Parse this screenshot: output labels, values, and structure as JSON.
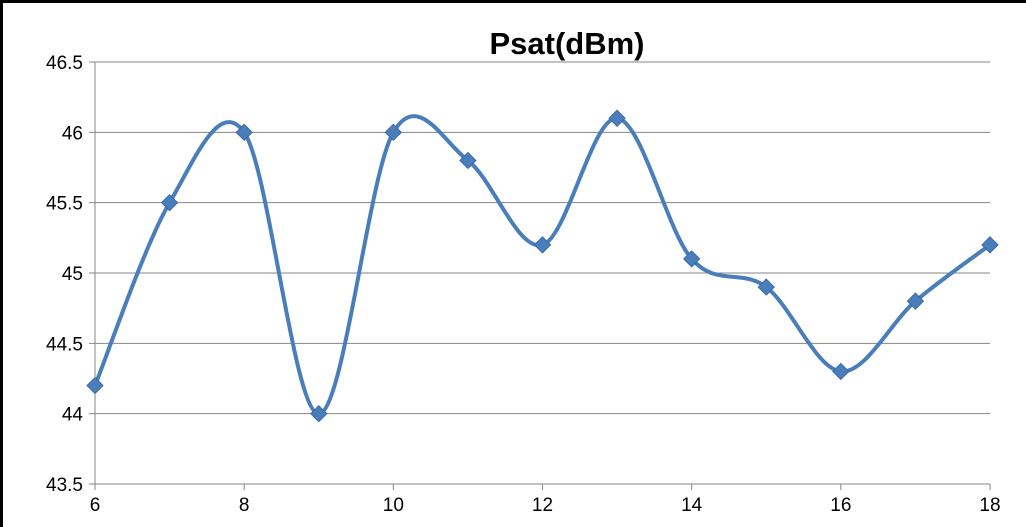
{
  "chart_data": {
    "type": "line",
    "title": "Psat(dBm)",
    "xlabel": "",
    "ylabel": "",
    "x": [
      6,
      7,
      8,
      9,
      10,
      11,
      12,
      13,
      14,
      15,
      16,
      17,
      18
    ],
    "series": [
      {
        "values": [
          44.2,
          45.5,
          46.0,
          44.0,
          46.0,
          45.8,
          45.2,
          46.1,
          45.1,
          44.9,
          44.3,
          44.8,
          45.2
        ]
      }
    ],
    "xlim": [
      6,
      18
    ],
    "ylim": [
      43.5,
      46.5
    ],
    "xticks": [
      6,
      8,
      10,
      12,
      14,
      16,
      18
    ],
    "yticks": [
      43.5,
      44,
      44.5,
      45,
      45.5,
      46,
      46.5
    ],
    "ytick_labels": [
      "43.5",
      "44",
      "44.5",
      "45",
      "45.5",
      "46",
      "46.5"
    ],
    "xtick_labels": [
      "6",
      "8",
      "10",
      "12",
      "14",
      "16",
      "18"
    ],
    "grid": "horizontal",
    "smooth": true,
    "marker": "diamond",
    "legend": "none",
    "colors": {
      "line": "#4A7EBB",
      "marker": "#4A7EBB",
      "grid": "#868686",
      "axis": "#868686"
    }
  }
}
